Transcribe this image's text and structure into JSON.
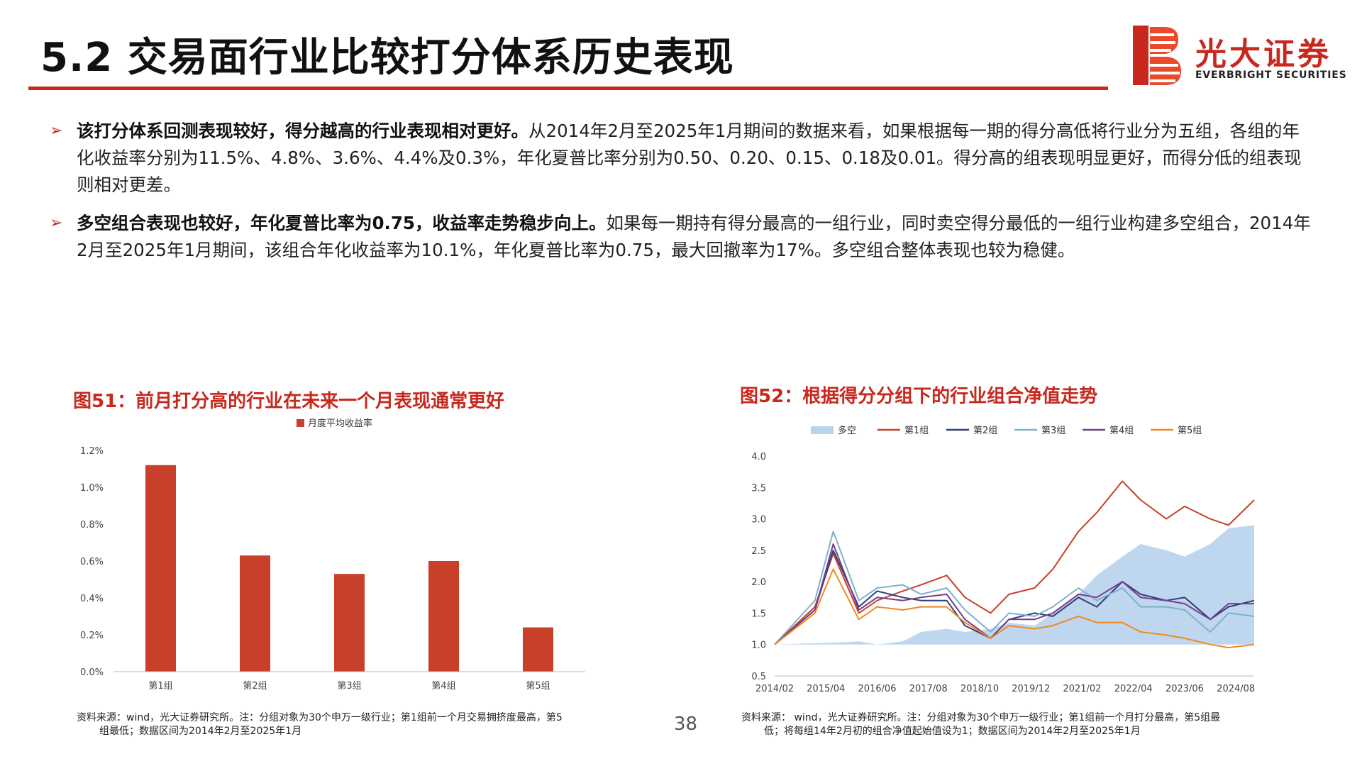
{
  "header": {
    "title": "5.2 交易面行业比较打分体系历史表现",
    "logo_cn": "光大证券",
    "logo_en": "EVERBRIGHT SECURITIES",
    "accent": "#c8281e"
  },
  "bullets": [
    {
      "bold": "该打分体系回测表现较好，得分越高的行业表现相对更好。",
      "text": "从2014年2月至2025年1月期间的数据来看，如果根据每一期的得分高低将行业分为五组，各组的年化收益率分别为11.5%、4.8%、3.6%、4.4%及0.3%，年化夏普比率分别为0.50、0.20、0.15、0.18及0.01。得分高的组表现明显更好，而得分低的组表现则相对更差。"
    },
    {
      "bold": "多空组合表现也较好，年化夏普比率为0.75，收益率走势稳步向上。",
      "text": "如果每一期持有得分最高的一组行业，同时卖空得分最低的一组行业构建多空组合，2014年2月至2025年1月期间，该组合年化收益率为10.1%，年化夏普比率为0.75，最大回撤率为17%。多空组合整体表现也较为稳健。"
    }
  ],
  "figure1": {
    "title": "图51：前月打分高的行业在未来一个月表现通常更好",
    "source_line1": "资料来源：wind，光大证券研究所。注：分组对象为30个申万一级行业；第1组前一个月交易拥挤度最高，第5",
    "source_line2": "组最低；数据区间为2014年2月至2025年1月"
  },
  "figure2": {
    "title": "图52：根据得分分组下的行业组合净值走势",
    "source_line1": "资料来源： wind，光大证券研究所。注：分组对象为30个申万一级行业；第1组前一个月打分最高，第5组最",
    "source_line2": "低；将每组14年2月初的组合净值起始值设为1；数据区间为2014年2月至2025年1月"
  },
  "page_number": "38",
  "chart_data": [
    {
      "type": "bar",
      "legend": "月度平均收益率",
      "legend_position": "top",
      "categories": [
        "第1组",
        "第2组",
        "第3组",
        "第4组",
        "第5组"
      ],
      "values": [
        1.12,
        0.63,
        0.53,
        0.6,
        0.24
      ],
      "unit": "%",
      "ylim": [
        0,
        1.2
      ],
      "yticks": [
        "0.0%",
        "0.2%",
        "0.4%",
        "0.6%",
        "0.8%",
        "1.0%",
        "1.2%"
      ],
      "bar_color": "#c8402a",
      "grid": false
    },
    {
      "type": "line",
      "legend_position": "top",
      "x_ticks": [
        "2014/02",
        "2015/04",
        "2016/06",
        "2017/08",
        "2018/10",
        "2019/12",
        "2021/02",
        "2022/04",
        "2023/06",
        "2024/08"
      ],
      "x_dates": [
        "2014-02",
        "2015-01",
        "2015-06",
        "2016-01",
        "2016-06",
        "2017-01",
        "2017-06",
        "2018-01",
        "2018-06",
        "2019-01",
        "2019-06",
        "2020-01",
        "2020-06",
        "2021-01",
        "2021-06",
        "2022-01",
        "2022-06",
        "2023-01",
        "2023-06",
        "2024-01",
        "2024-06",
        "2025-01"
      ],
      "ylim": [
        0.5,
        4.0
      ],
      "yticks": [
        "0.5",
        "1.0",
        "1.5",
        "2.0",
        "2.5",
        "3.0",
        "3.5",
        "4.0"
      ],
      "grid": false,
      "series": [
        {
          "name": "多空",
          "style": "area",
          "color": "#b8d3ec",
          "values": [
            1.0,
            1.02,
            1.03,
            1.05,
            1.0,
            1.05,
            1.2,
            1.25,
            1.2,
            1.25,
            1.35,
            1.3,
            1.5,
            1.8,
            2.1,
            2.4,
            2.6,
            2.5,
            2.4,
            2.6,
            2.85,
            2.9
          ]
        },
        {
          "name": "第1组",
          "style": "line",
          "color": "#c8402a",
          "values": [
            1.0,
            1.6,
            2.45,
            1.5,
            1.7,
            1.85,
            1.95,
            2.1,
            1.75,
            1.5,
            1.8,
            1.9,
            2.2,
            2.8,
            3.1,
            3.6,
            3.3,
            3.0,
            3.2,
            3.0,
            2.9,
            3.3
          ]
        },
        {
          "name": "第2组",
          "style": "line",
          "color": "#2f3f7a",
          "values": [
            1.0,
            1.55,
            2.5,
            1.6,
            1.85,
            1.75,
            1.7,
            1.7,
            1.3,
            1.1,
            1.4,
            1.5,
            1.45,
            1.75,
            1.6,
            2.0,
            1.8,
            1.7,
            1.75,
            1.4,
            1.6,
            1.7
          ]
        },
        {
          "name": "第3组",
          "style": "line",
          "color": "#7fb0cc",
          "values": [
            1.0,
            1.7,
            2.8,
            1.7,
            1.9,
            1.95,
            1.8,
            1.9,
            1.55,
            1.2,
            1.5,
            1.45,
            1.6,
            1.9,
            1.7,
            1.9,
            1.6,
            1.6,
            1.55,
            1.2,
            1.5,
            1.45
          ]
        },
        {
          "name": "第4组",
          "style": "line",
          "color": "#7a3c8c",
          "values": [
            1.0,
            1.55,
            2.6,
            1.55,
            1.75,
            1.7,
            1.75,
            1.8,
            1.4,
            1.1,
            1.4,
            1.4,
            1.5,
            1.8,
            1.75,
            2.0,
            1.75,
            1.7,
            1.65,
            1.4,
            1.65,
            1.65
          ]
        },
        {
          "name": "第5组",
          "style": "line",
          "color": "#f08a1e",
          "values": [
            1.0,
            1.5,
            2.2,
            1.4,
            1.6,
            1.55,
            1.6,
            1.6,
            1.35,
            1.1,
            1.3,
            1.25,
            1.3,
            1.45,
            1.35,
            1.35,
            1.2,
            1.15,
            1.1,
            1.0,
            0.95,
            1.0
          ]
        }
      ]
    }
  ]
}
